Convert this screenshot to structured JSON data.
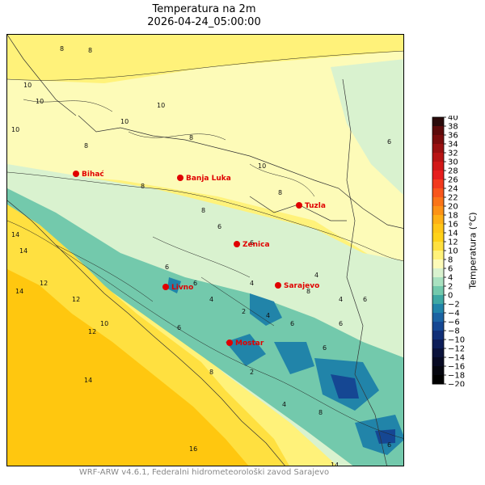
{
  "header": {
    "title": "Temperatura na 2m",
    "datetime": "2026-04-24_05:00:00"
  },
  "footer": {
    "credit": "WRF-ARW v4.6.1, Federalni hidrometeorološki zavod Sarajevo"
  },
  "colorbar": {
    "label": "Temperatura (°C)",
    "ticks": [
      "40",
      "38",
      "36",
      "34",
      "32",
      "30",
      "28",
      "26",
      "24",
      "22",
      "20",
      "18",
      "16",
      "14",
      "12",
      "10",
      "8",
      "6",
      "4",
      "2",
      "0",
      "−2",
      "−4",
      "−6",
      "−8",
      "−10",
      "−12",
      "−14",
      "−16",
      "−18",
      "−20"
    ],
    "colors": [
      "#2a0a0a",
      "#5c0a0a",
      "#7a0c0c",
      "#9a1010",
      "#b81414",
      "#d21818",
      "#e61e1e",
      "#f23a1e",
      "#f8561c",
      "#fa7418",
      "#fc9216",
      "#feb016",
      "#ffc618",
      "#ffd21a",
      "#ffe040",
      "#fff27a",
      "#fdfbb8",
      "#d9f2cf",
      "#a9e1c0",
      "#73c9ac",
      "#3ea8a3",
      "#2184a9",
      "#1b63a3",
      "#154793",
      "#112f77",
      "#0d1d58",
      "#0a123b",
      "#070a23",
      "#05060f",
      "#000000"
    ]
  },
  "map": {
    "colors": {
      "sea_warm": "#ffc70f",
      "coast_warm": "#ffe040",
      "warm_land": "#fff27a",
      "mild": "#fdfbb8",
      "cool": "#d9f2cf",
      "cold": "#73c9ac",
      "very_cold": "#2184a9",
      "deep_cold": "#154793",
      "city_marker": "#e00000"
    },
    "cities": [
      {
        "name": "Bihać"
      },
      {
        "name": "Banja Luka"
      },
      {
        "name": "Tuzla"
      },
      {
        "name": "Zenica"
      },
      {
        "name": "Livno"
      },
      {
        "name": "Sarajevo"
      },
      {
        "name": "Mostar"
      }
    ],
    "contour_labels": [
      "8",
      "10",
      "10",
      "8",
      "10",
      "10",
      "8",
      "10",
      "8",
      "6",
      "8",
      "10",
      "6",
      "8",
      "6",
      "10",
      "8",
      "6",
      "14",
      "12",
      "12",
      "14",
      "12",
      "14",
      "4",
      "6",
      "6",
      "4",
      "2",
      "4",
      "6",
      "4",
      "4",
      "2",
      "6",
      "8",
      "6",
      "4",
      "8",
      "14",
      "16",
      "14",
      "6",
      "8",
      "6"
    ]
  }
}
